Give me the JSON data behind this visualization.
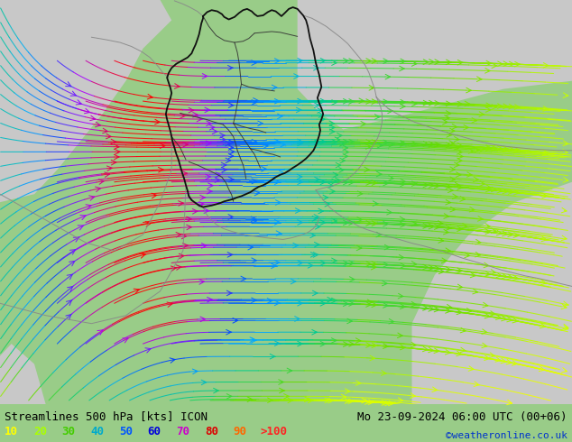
{
  "title_left": "Streamlines 500 hPa [kts] ICON",
  "title_right": "Mo 23-09-2024 06:00 UTC (00+06)",
  "credit": "©weatheronline.co.uk",
  "legend_values": [
    "10",
    "20",
    "30",
    "40",
    "50",
    "60",
    "70",
    "80",
    "90",
    ">100"
  ],
  "legend_colors": [
    "#ffff00",
    "#aaff00",
    "#55cc00",
    "#00aaaa",
    "#0055ff",
    "#aa00ff",
    "#ff00ff",
    "#ff0000",
    "#ff6600",
    "#ff3333"
  ],
  "bg_color": "#99cc88",
  "map_bg_green": "#99dd66",
  "map_bg_gray": "#cccccc",
  "figsize": [
    6.34,
    4.9
  ],
  "dpi": 100,
  "title_fontsize": 9,
  "legend_fontsize": 9,
  "credit_fontsize": 8
}
